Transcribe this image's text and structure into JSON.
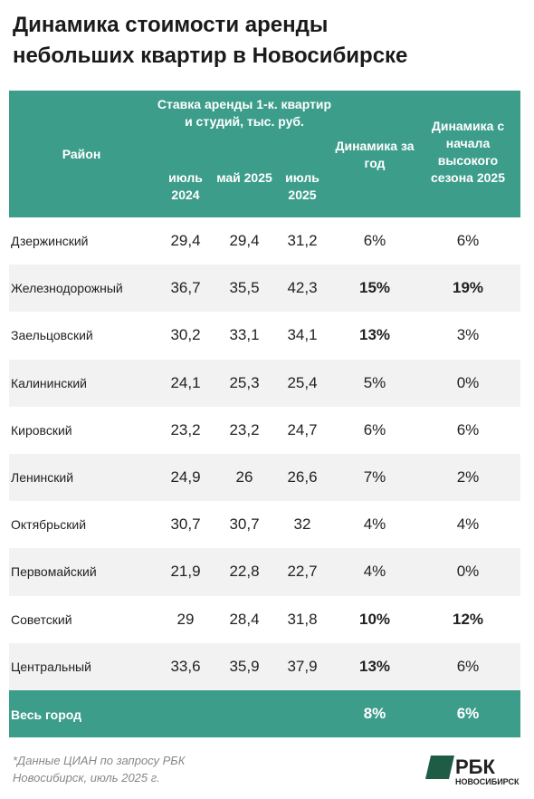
{
  "header": {
    "title": [
      "Динамика стоимости аренды",
      "небольших квартир в Новосибирске"
    ]
  },
  "table": {
    "columns": {
      "district": "Район",
      "rate_group": "Ставка аренды 1-к. квартир и студий, тыс. руб.",
      "rate_periods": [
        "июль 2024",
        "май 2025",
        "июль 2025"
      ],
      "change_year": "Динамика за год",
      "change_season": "Динамика с начала высокого сезона 2025"
    },
    "rows": [
      [
        "Дзержинский",
        "29,4",
        "29,4",
        "31,2",
        {
          "text": "6%",
          "bold": false
        },
        {
          "text": "6%",
          "bold": false
        }
      ],
      [
        "Железнодорожный",
        "36,7",
        "35,5",
        "42,3",
        {
          "text": "15%",
          "bold": true
        },
        {
          "text": "19%",
          "bold": true
        }
      ],
      [
        "Заельцовский",
        "30,2",
        "33,1",
        "34,1",
        {
          "text": "13%",
          "bold": true
        },
        {
          "text": "3%",
          "bold": false
        }
      ],
      [
        "Калининский",
        "24,1",
        "25,3",
        "25,4",
        {
          "text": "5%",
          "bold": false
        },
        {
          "text": "0%",
          "bold": false
        }
      ],
      [
        "Кировский",
        "23,2",
        "23,2",
        "24,7",
        {
          "text": "6%",
          "bold": false
        },
        {
          "text": "6%",
          "bold": false
        }
      ],
      [
        "Ленинский",
        "24,9",
        "26",
        "26,6",
        {
          "text": "7%",
          "bold": false
        },
        {
          "text": "2%",
          "bold": false
        }
      ],
      [
        "Октябрьский",
        "30,7",
        "30,7",
        "32",
        {
          "text": "4%",
          "bold": false
        },
        {
          "text": "4%",
          "bold": false
        }
      ],
      [
        "Первомайский",
        "21,9",
        "22,8",
        "22,7",
        {
          "text": "4%",
          "bold": false
        },
        {
          "text": "0%",
          "bold": false
        }
      ],
      [
        "Советский",
        "29",
        "28,4",
        "31,8",
        {
          "text": "10%",
          "bold": true
        },
        {
          "text": "12%",
          "bold": true
        }
      ],
      [
        "Центральный",
        "33,6",
        "35,9",
        "37,9",
        {
          "text": "13%",
          "bold": true
        },
        {
          "text": "6%",
          "bold": false
        }
      ]
    ],
    "total": {
      "label": "Весь город",
      "change_year": "8%",
      "change_season": "6%"
    }
  },
  "footer": {
    "note": "*Данные ЦИАН по запросу РБК Новосибирск, июль 2025 г.",
    "logo": "РБК",
    "logo_sub": "НОВОСИБИРСК"
  }
}
